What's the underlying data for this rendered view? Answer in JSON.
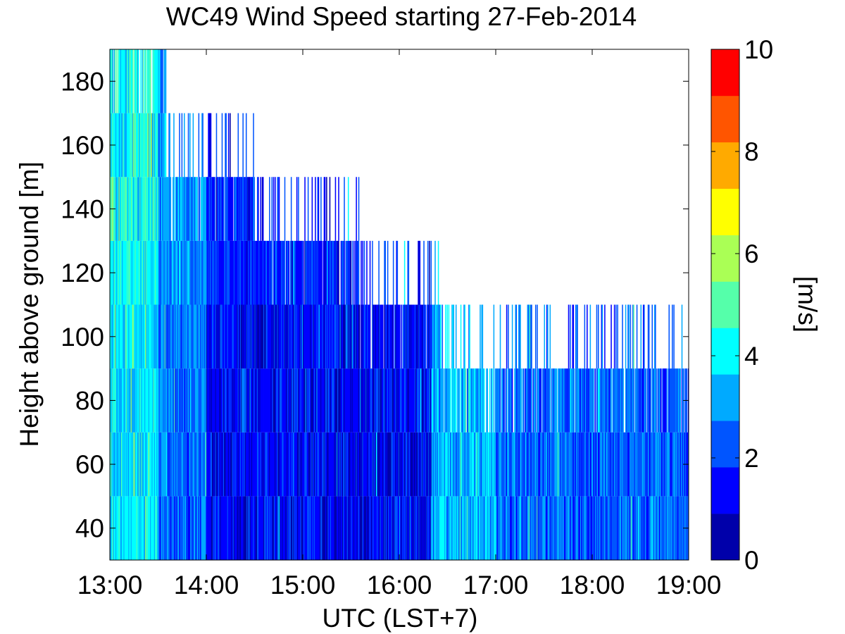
{
  "chart_data": {
    "type": "heatmap",
    "title": "WC49 Wind Speed starting 27-Feb-2014",
    "xlabel": "UTC (LST+7)",
    "ylabel": "Height above ground [m]",
    "x_tick_labels": [
      "13:00",
      "14:00",
      "15:00",
      "16:00",
      "17:00",
      "18:00",
      "19:00"
    ],
    "x_ticks_hours": [
      13,
      14,
      15,
      16,
      17,
      18,
      19
    ],
    "xlim_hours": [
      13,
      19
    ],
    "y_ticks": [
      40,
      60,
      80,
      100,
      120,
      140,
      160,
      180
    ],
    "ylim": [
      30,
      190
    ],
    "heights_m": [
      30,
      50,
      70,
      90,
      110,
      130,
      150,
      170,
      190
    ],
    "colorbar": {
      "label": "[m/s]",
      "range": [
        0,
        10
      ],
      "ticks": [
        0,
        2,
        4,
        6,
        8,
        10
      ],
      "bins": 11,
      "colors": [
        "#0000aa",
        "#0000ff",
        "#0055ff",
        "#00aaff",
        "#00ffff",
        "#55ffaa",
        "#aaff55",
        "#ffff00",
        "#ffaa00",
        "#ff5500",
        "#ff0000"
      ]
    },
    "data_top_height_by_period": [
      {
        "from": "13:00",
        "to": "13:35",
        "top_m": 190
      },
      {
        "from": "13:35",
        "to": "14:30",
        "top_m": 150
      },
      {
        "from": "14:30",
        "to": "15:35",
        "top_m": 130
      },
      {
        "from": "15:35",
        "to": "16:25",
        "top_m": 110
      },
      {
        "from": "16:25",
        "to": "19:00",
        "top_m": 90
      }
    ],
    "mean_speed_ms_by_period": [
      {
        "from": "13:00",
        "to": "13:30",
        "mean_ms": 3.8
      },
      {
        "from": "13:30",
        "to": "14:00",
        "mean_ms": 2.5
      },
      {
        "from": "14:00",
        "to": "16:20",
        "mean_ms": 1.3
      },
      {
        "from": "16:20",
        "to": "17:00",
        "mean_ms": 3.3
      },
      {
        "from": "17:00",
        "to": "19:00",
        "mean_ms": 2.4
      }
    ],
    "grid": false,
    "legend": "colorbar-right"
  }
}
